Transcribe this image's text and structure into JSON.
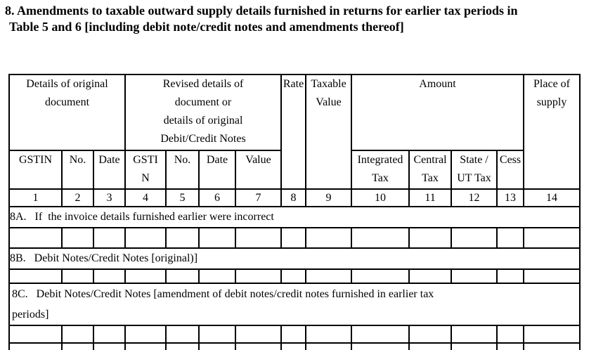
{
  "colors": {
    "background": "#ffffff",
    "text": "#000000",
    "border": "#000000"
  },
  "title": {
    "line1": "8. Amendments to taxable outward supply details furnished in returns for earlier tax periods in",
    "line2": "Table 5 and 6 [including debit note/credit notes and amendments thereof]"
  },
  "table": {
    "header": {
      "details_original": "Details of original\ndocument",
      "revised_details": "Revised details of\ndocument or\ndetails of original\nDebit/Credit Notes",
      "rate": "Rate",
      "taxable_value": "Taxable\nValue",
      "amount": "Amount",
      "place_of_supply": "Place of\nsupply",
      "sub": [
        "GSTIN",
        "No.",
        "Date",
        "GSTI\nN",
        "No.",
        "Date",
        "Value",
        "Integrated\nTax",
        "Central\nTax",
        "State /\nUT Tax",
        "Cess"
      ],
      "column_numbers": [
        "1",
        "2",
        "3",
        "4",
        "5",
        "6",
        "7",
        "8",
        "9",
        "10",
        "11",
        "12",
        "13",
        "14"
      ]
    },
    "sections": [
      {
        "id": "8A",
        "label": "8A.   If  the invoice details furnished earlier were incorrect"
      },
      {
        "id": "8B",
        "label": "8B.   Debit Notes/Credit Notes [original)]"
      },
      {
        "id": "8C",
        "label": "8C.   Debit Notes/Credit Notes [amendment of debit notes/credit notes furnished in earlier tax\nperiods]"
      }
    ]
  }
}
